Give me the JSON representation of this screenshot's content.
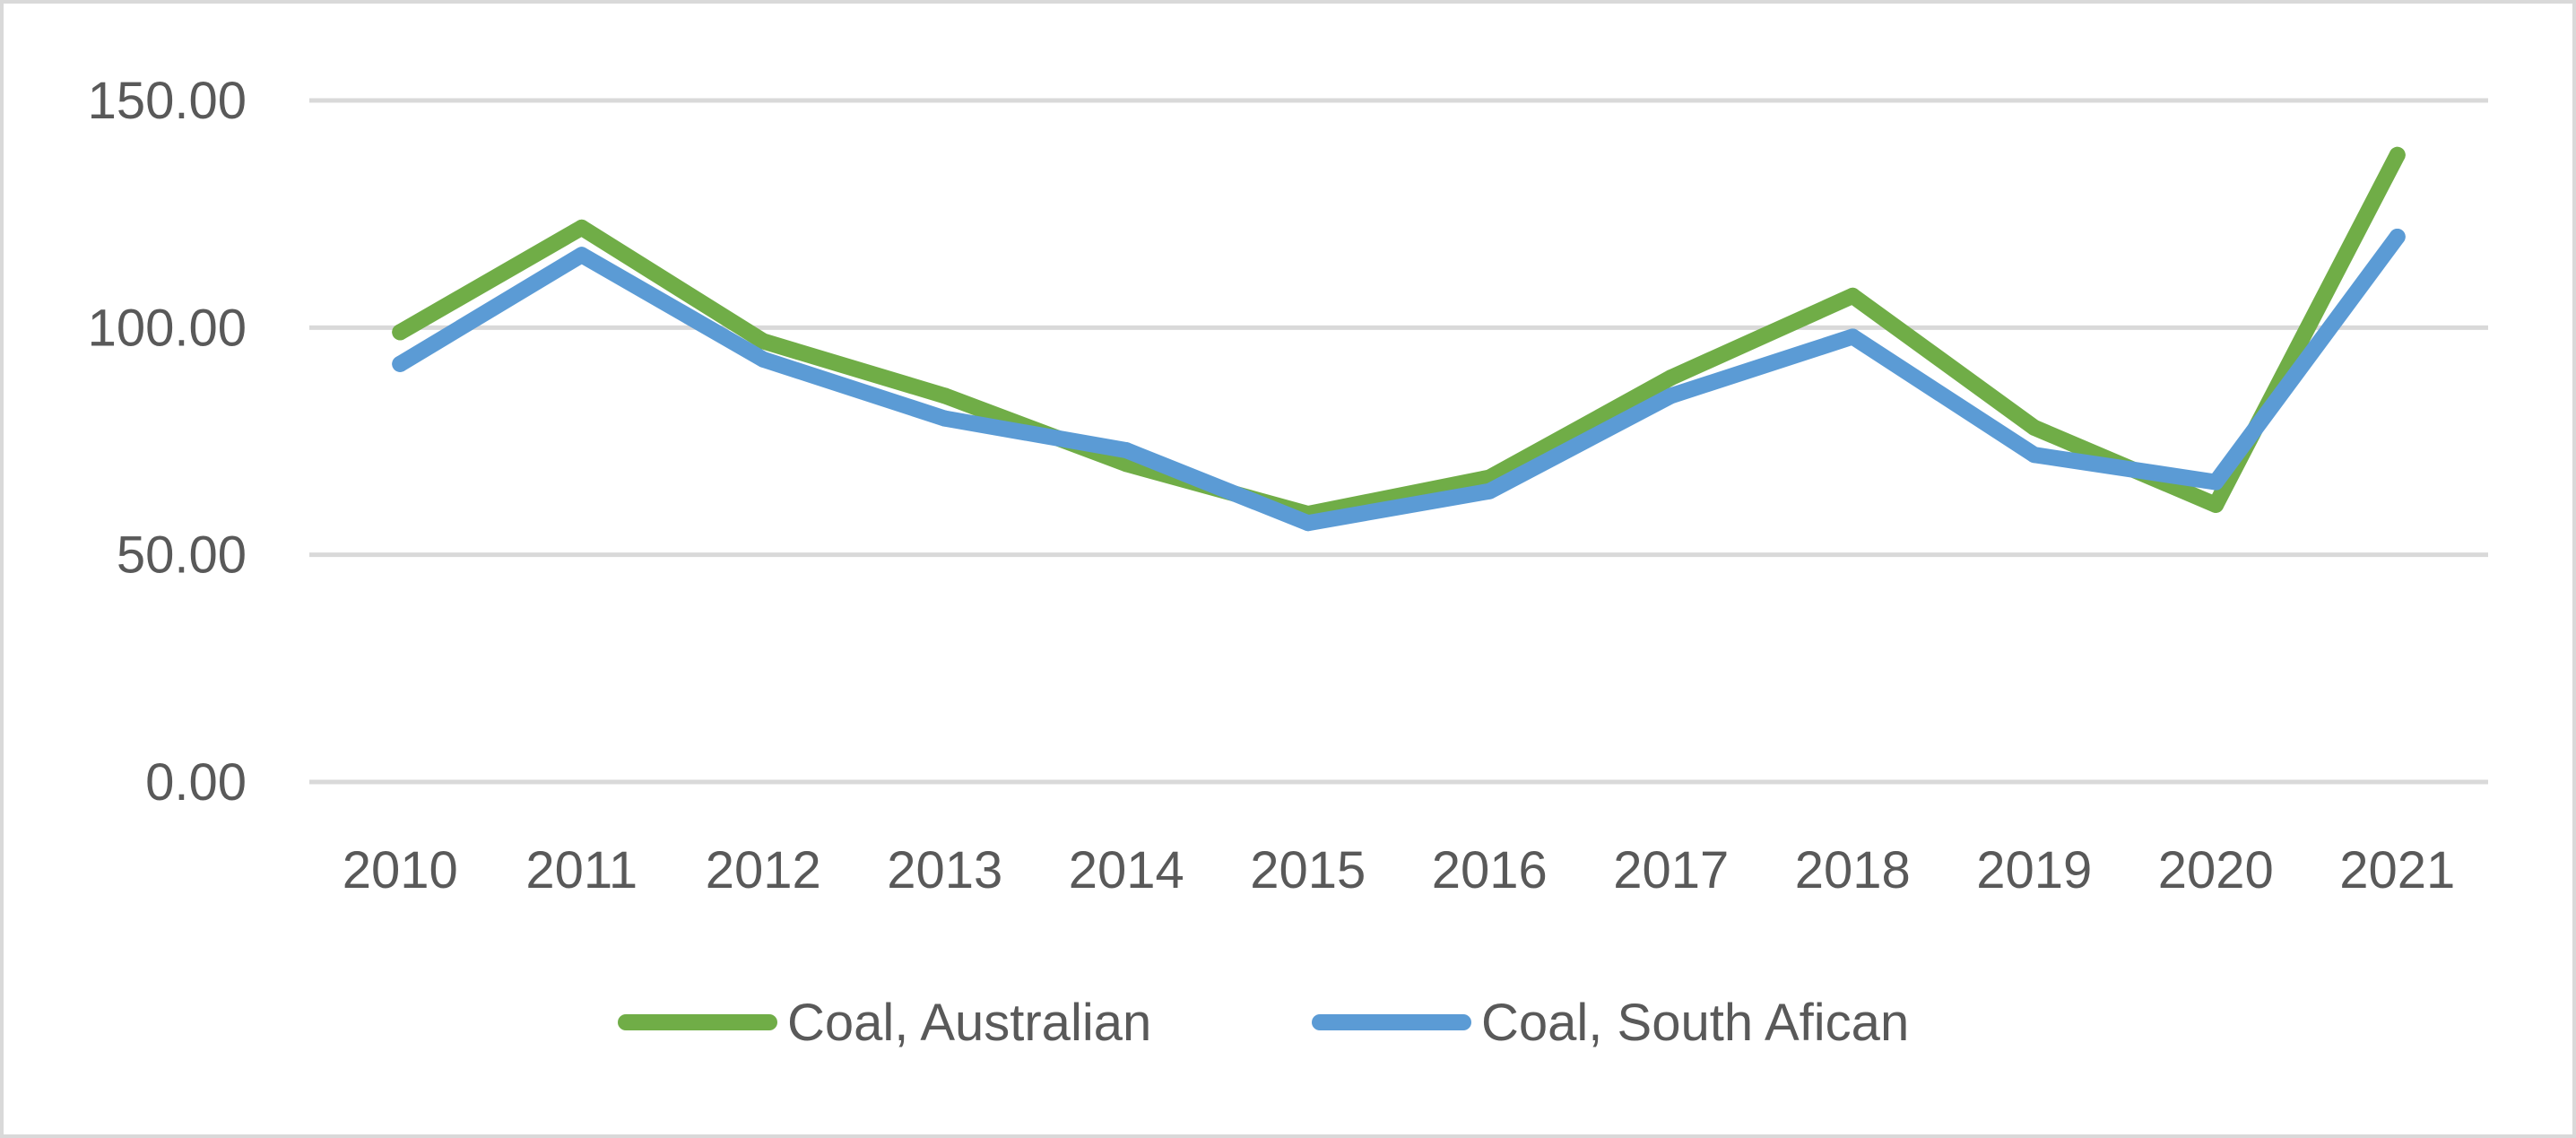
{
  "chart_data": {
    "type": "line",
    "title": "",
    "xlabel": "",
    "ylabel": "",
    "categories": [
      "2010",
      "2011",
      "2012",
      "2013",
      "2014",
      "2015",
      "2016",
      "2017",
      "2018",
      "2019",
      "2020",
      "2021"
    ],
    "series": [
      {
        "name": "Coal, Australian",
        "color": "#70ad47",
        "values": [
          99,
          122,
          97,
          85,
          70,
          59,
          67,
          89,
          107,
          78,
          61,
          138
        ]
      },
      {
        "name": "Coal, South Afican",
        "color": "#5b9bd5",
        "values": [
          92,
          116,
          93,
          80,
          73,
          57,
          64,
          85,
          98,
          72,
          66,
          120
        ]
      }
    ],
    "y_ticks": [
      "0.00",
      "50.00",
      "100.00",
      "150.00"
    ],
    "y_tick_values": [
      0,
      50,
      100,
      150
    ],
    "ylim": [
      0,
      150
    ],
    "grid": "horizontal",
    "legend_position": "bottom"
  }
}
